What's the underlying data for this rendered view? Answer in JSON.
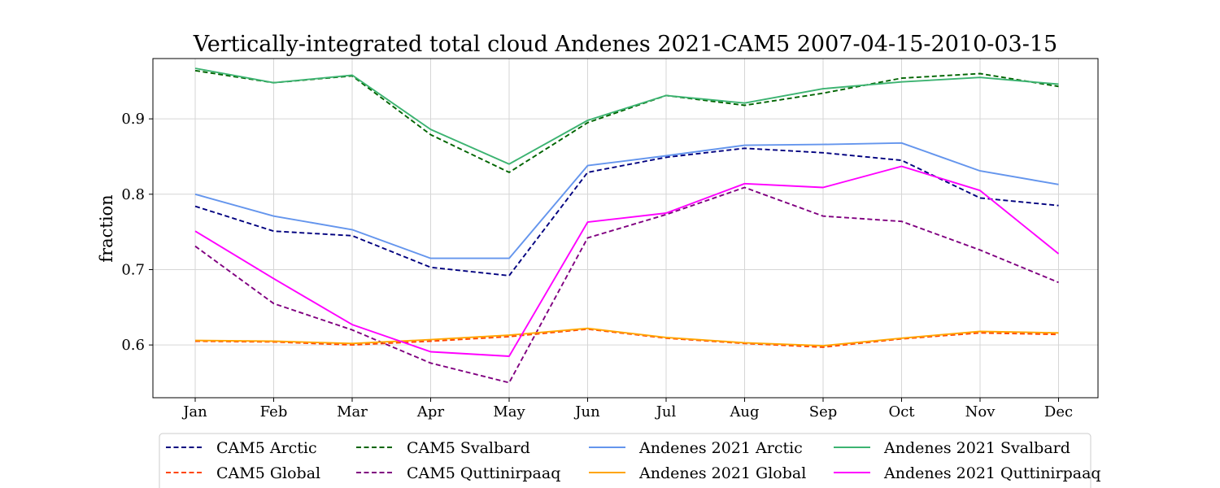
{
  "chart_data": {
    "type": "line",
    "title": "Vertically-integrated total cloud Andenes 2021-CAM5 2007-04-15-2010-03-15",
    "xlabel": "",
    "ylabel": "fraction",
    "ylim": [
      0.53,
      0.98
    ],
    "yticks": [
      "0.6",
      "0.7",
      "0.8",
      "0.9"
    ],
    "grid": true,
    "legend_position": "bottom",
    "categories": [
      "Jan",
      "Feb",
      "Mar",
      "Apr",
      "May",
      "Jun",
      "Jul",
      "Aug",
      "Sep",
      "Oct",
      "Nov",
      "Dec"
    ],
    "series": [
      {
        "name": "CAM5 Arctic",
        "color": "#00007f",
        "dash": true,
        "values": [
          0.784,
          0.751,
          0.745,
          0.703,
          0.692,
          0.829,
          0.849,
          0.861,
          0.855,
          0.845,
          0.795,
          0.785
        ]
      },
      {
        "name": "CAM5 Global",
        "color": "#ff4500",
        "dash": true,
        "values": [
          0.605,
          0.604,
          0.6,
          0.605,
          0.611,
          0.621,
          0.609,
          0.602,
          0.597,
          0.608,
          0.616,
          0.614
        ]
      },
      {
        "name": "CAM5 Svalbard",
        "color": "#006400",
        "dash": true,
        "values": [
          0.964,
          0.948,
          0.957,
          0.879,
          0.829,
          0.895,
          0.931,
          0.918,
          0.934,
          0.954,
          0.96,
          0.943
        ]
      },
      {
        "name": "CAM5 Quttinirpaaq",
        "color": "#800080",
        "dash": true,
        "values": [
          0.731,
          0.655,
          0.62,
          0.576,
          0.55,
          0.742,
          0.773,
          0.809,
          0.771,
          0.764,
          0.726,
          0.683
        ]
      },
      {
        "name": "Andenes 2021 Arctic",
        "color": "#6495ed",
        "dash": false,
        "values": [
          0.8,
          0.771,
          0.753,
          0.715,
          0.715,
          0.838,
          0.851,
          0.865,
          0.866,
          0.868,
          0.831,
          0.813
        ]
      },
      {
        "name": "Andenes 2021 Global",
        "color": "#ffa500",
        "dash": false,
        "values": [
          0.606,
          0.605,
          0.602,
          0.607,
          0.613,
          0.622,
          0.61,
          0.603,
          0.599,
          0.609,
          0.618,
          0.616
        ]
      },
      {
        "name": "Andenes 2021 Svalbard",
        "color": "#3cb371",
        "dash": false,
        "values": [
          0.967,
          0.948,
          0.958,
          0.886,
          0.84,
          0.898,
          0.931,
          0.921,
          0.94,
          0.949,
          0.955,
          0.946
        ]
      },
      {
        "name": "Andenes 2021 Quttinirpaaq",
        "color": "#ff00ff",
        "dash": false,
        "values": [
          0.751,
          0.688,
          0.627,
          0.591,
          0.585,
          0.763,
          0.775,
          0.814,
          0.809,
          0.837,
          0.805,
          0.721
        ]
      }
    ]
  }
}
